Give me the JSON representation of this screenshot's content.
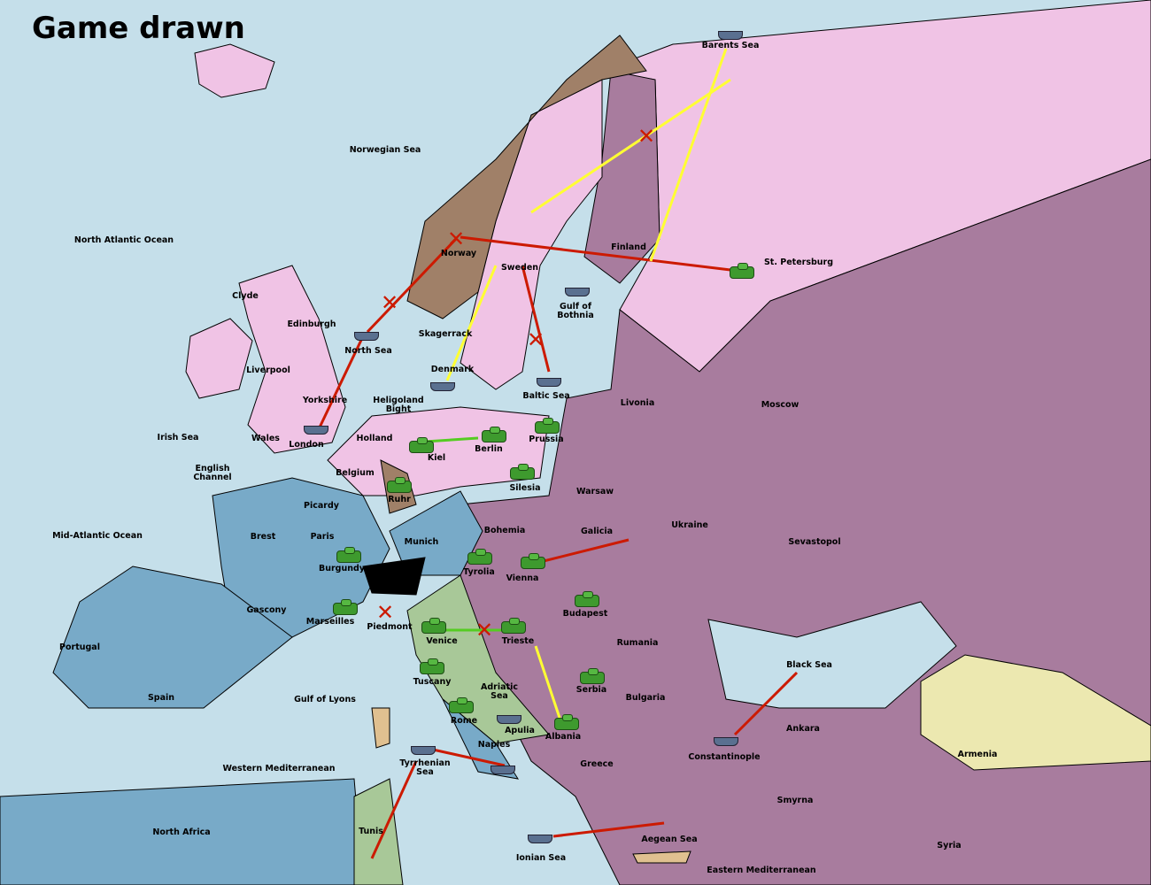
{
  "title": "Game drawn",
  "colors": {
    "sea": "#c5dfea",
    "russia_pink": "#f0c3e5",
    "purple": "#a87c9e",
    "france_blue": "#78aac8",
    "brown": "#a08068",
    "green": "#a8c898",
    "yellow": "#ece8b0",
    "move_arrow": "#cc1a00",
    "support_arrow": "#ffff33",
    "convoy_line": "#55cc22"
  },
  "territories": [
    "Barents Sea",
    "Norwegian Sea",
    "North Atlantic Ocean",
    "Finland",
    "St. Petersburg",
    "Norway",
    "Sweden",
    "Gulf of Bothnia",
    "Clyde",
    "Edinburgh",
    "North Sea",
    "Skagerrack",
    "Denmark",
    "Baltic Sea",
    "Liverpool",
    "Yorkshire",
    "Heligoland Bight",
    "Livonia",
    "Moscow",
    "Irish Sea",
    "Wales",
    "London",
    "Holland",
    "Kiel",
    "Berlin",
    "Prussia",
    "English Channel",
    "Belgium",
    "Silesia",
    "Warsaw",
    "Ruhr",
    "Picardy",
    "Ukraine",
    "Bohemia",
    "Galicia",
    "Mid-Atlantic Ocean",
    "Brest",
    "Paris",
    "Munich",
    "Sevastopol",
    "Burgundy",
    "Tyrolia",
    "Vienna",
    "Gascony",
    "Budapest",
    "Marseilles",
    "Piedmont",
    "Venice",
    "Trieste",
    "Rumania",
    "Portugal",
    "Black Sea",
    "Tuscany",
    "Adriatic Sea",
    "Serbia",
    "Spain",
    "Gulf of Lyons",
    "Bulgaria",
    "Rome",
    "Apulia",
    "Ankara",
    "Albania",
    "Naples",
    "Armenia",
    "Constantinople",
    "Tyrrhenian Sea",
    "Greece",
    "Western Mediterranean",
    "Smyrna",
    "North Africa",
    "Tunis",
    "Aegean Sea",
    "Ionian Sea",
    "Syria",
    "Eastern Mediterranean"
  ]
}
